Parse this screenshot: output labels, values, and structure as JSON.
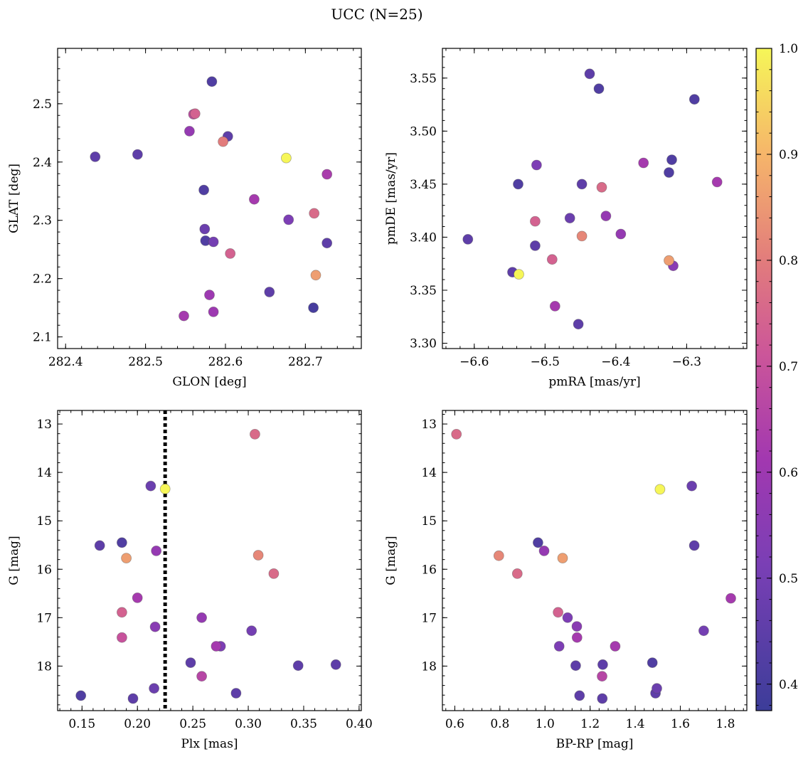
{
  "figure": {
    "title": "UCC (N=25)"
  },
  "colorbar": {
    "min": 0.375,
    "max": 1.0,
    "ticks": [
      0.4,
      0.5,
      0.6,
      0.7,
      0.8,
      0.9,
      1.0
    ],
    "tick_labels": [
      "0.4",
      "0.5",
      "0.6",
      "0.7",
      "0.8",
      "0.9",
      "1.0"
    ],
    "colormap": "plasma"
  },
  "chart_data": [
    {
      "type": "scatter",
      "xlabel": "GLON [deg]",
      "ylabel": "GLAT [deg]",
      "xlim": [
        282.39,
        282.77
      ],
      "ylim": [
        2.08,
        2.595
      ],
      "xticks": [
        282.4,
        282.5,
        282.6,
        282.7
      ],
      "xtick_labels": [
        "282.4",
        "282.5",
        "282.6",
        "282.7"
      ],
      "yticks": [
        2.1,
        2.2,
        2.3,
        2.4,
        2.5
      ],
      "ytick_labels": [
        "2.1",
        "2.2",
        "2.3",
        "2.4",
        "2.5"
      ],
      "invert_y": false,
      "points": [
        {
          "x": 282.583,
          "y": 2.538,
          "c": 0.42
        },
        {
          "x": 282.56,
          "y": 2.482,
          "c": 0.68
        },
        {
          "x": 282.562,
          "y": 2.483,
          "c": 0.74
        },
        {
          "x": 282.555,
          "y": 2.453,
          "c": 0.58
        },
        {
          "x": 282.603,
          "y": 2.444,
          "c": 0.45
        },
        {
          "x": 282.597,
          "y": 2.435,
          "c": 0.8
        },
        {
          "x": 282.437,
          "y": 2.409,
          "c": 0.45
        },
        {
          "x": 282.49,
          "y": 2.413,
          "c": 0.45
        },
        {
          "x": 282.676,
          "y": 2.407,
          "c": 1.0
        },
        {
          "x": 282.727,
          "y": 2.379,
          "c": 0.63
        },
        {
          "x": 282.573,
          "y": 2.352,
          "c": 0.42
        },
        {
          "x": 282.636,
          "y": 2.336,
          "c": 0.62
        },
        {
          "x": 282.711,
          "y": 2.312,
          "c": 0.76
        },
        {
          "x": 282.679,
          "y": 2.301,
          "c": 0.52
        },
        {
          "x": 282.574,
          "y": 2.285,
          "c": 0.48
        },
        {
          "x": 282.575,
          "y": 2.265,
          "c": 0.42
        },
        {
          "x": 282.585,
          "y": 2.263,
          "c": 0.5
        },
        {
          "x": 282.727,
          "y": 2.261,
          "c": 0.45
        },
        {
          "x": 282.606,
          "y": 2.243,
          "c": 0.74
        },
        {
          "x": 282.713,
          "y": 2.206,
          "c": 0.86
        },
        {
          "x": 282.655,
          "y": 2.177,
          "c": 0.45
        },
        {
          "x": 282.58,
          "y": 2.172,
          "c": 0.6
        },
        {
          "x": 282.548,
          "y": 2.136,
          "c": 0.62
        },
        {
          "x": 282.585,
          "y": 2.143,
          "c": 0.6
        },
        {
          "x": 282.71,
          "y": 2.15,
          "c": 0.4
        }
      ]
    },
    {
      "type": "scatter",
      "xlabel": "pmRA [mas/yr]",
      "ylabel": "pmDE [mas/yr]",
      "xlim": [
        -6.645,
        -6.215
      ],
      "ylim": [
        3.295,
        3.578
      ],
      "xticks": [
        -6.6,
        -6.5,
        -6.4,
        -6.3
      ],
      "xtick_labels": [
        "−6.6",
        "−6.5",
        "−6.4",
        "−6.3"
      ],
      "yticks": [
        3.3,
        3.35,
        3.4,
        3.45,
        3.5,
        3.55
      ],
      "ytick_labels": [
        "3.30",
        "3.35",
        "3.40",
        "3.45",
        "3.50",
        "3.55"
      ],
      "invert_y": false,
      "points": [
        {
          "x": -6.437,
          "y": 3.554,
          "c": 0.45
        },
        {
          "x": -6.424,
          "y": 3.54,
          "c": 0.42
        },
        {
          "x": -6.289,
          "y": 3.53,
          "c": 0.42
        },
        {
          "x": -6.321,
          "y": 3.473,
          "c": 0.42
        },
        {
          "x": -6.512,
          "y": 3.468,
          "c": 0.52
        },
        {
          "x": -6.361,
          "y": 3.47,
          "c": 0.62
        },
        {
          "x": -6.325,
          "y": 3.461,
          "c": 0.42
        },
        {
          "x": -6.257,
          "y": 3.452,
          "c": 0.62
        },
        {
          "x": -6.538,
          "y": 3.45,
          "c": 0.42
        },
        {
          "x": -6.448,
          "y": 3.45,
          "c": 0.45
        },
        {
          "x": -6.42,
          "y": 3.447,
          "c": 0.76
        },
        {
          "x": -6.465,
          "y": 3.418,
          "c": 0.48
        },
        {
          "x": -6.414,
          "y": 3.42,
          "c": 0.58
        },
        {
          "x": -6.514,
          "y": 3.415,
          "c": 0.74
        },
        {
          "x": -6.393,
          "y": 3.403,
          "c": 0.58
        },
        {
          "x": -6.448,
          "y": 3.401,
          "c": 0.82
        },
        {
          "x": -6.609,
          "y": 3.398,
          "c": 0.45
        },
        {
          "x": -6.514,
          "y": 3.392,
          "c": 0.45
        },
        {
          "x": -6.49,
          "y": 3.379,
          "c": 0.74
        },
        {
          "x": -6.325,
          "y": 3.378,
          "c": 0.86
        },
        {
          "x": -6.319,
          "y": 3.373,
          "c": 0.55
        },
        {
          "x": -6.546,
          "y": 3.367,
          "c": 0.45
        },
        {
          "x": -6.537,
          "y": 3.365,
          "c": 1.0
        },
        {
          "x": -6.486,
          "y": 3.335,
          "c": 0.62
        },
        {
          "x": -6.453,
          "y": 3.318,
          "c": 0.45
        }
      ]
    },
    {
      "type": "scatter",
      "xlabel": "Plx [mas]",
      "ylabel": "G [mag]",
      "xlim": [
        0.128,
        0.402
      ],
      "ylim": [
        18.92,
        12.72
      ],
      "xticks": [
        0.15,
        0.2,
        0.25,
        0.3,
        0.35,
        0.4
      ],
      "xtick_labels": [
        "0.15",
        "0.20",
        "0.25",
        "0.30",
        "0.35",
        "0.40"
      ],
      "yticks": [
        13,
        14,
        15,
        16,
        17,
        18
      ],
      "ytick_labels": [
        "13",
        "14",
        "15",
        "16",
        "17",
        "18"
      ],
      "invert_y": true,
      "vline": 0.225,
      "points": [
        {
          "x": 0.306,
          "y": 13.21,
          "c": 0.76
        },
        {
          "x": 0.212,
          "y": 14.28,
          "c": 0.48
        },
        {
          "x": 0.225,
          "y": 14.34,
          "c": 1.0
        },
        {
          "x": 0.186,
          "y": 15.45,
          "c": 0.42
        },
        {
          "x": 0.166,
          "y": 15.51,
          "c": 0.45
        },
        {
          "x": 0.217,
          "y": 15.62,
          "c": 0.58
        },
        {
          "x": 0.309,
          "y": 15.71,
          "c": 0.82
        },
        {
          "x": 0.19,
          "y": 15.77,
          "c": 0.86
        },
        {
          "x": 0.323,
          "y": 16.09,
          "c": 0.76
        },
        {
          "x": 0.2,
          "y": 16.59,
          "c": 0.62
        },
        {
          "x": 0.186,
          "y": 16.89,
          "c": 0.74
        },
        {
          "x": 0.258,
          "y": 17.0,
          "c": 0.58
        },
        {
          "x": 0.216,
          "y": 17.19,
          "c": 0.55
        },
        {
          "x": 0.303,
          "y": 17.27,
          "c": 0.5
        },
        {
          "x": 0.186,
          "y": 17.41,
          "c": 0.7
        },
        {
          "x": 0.271,
          "y": 17.59,
          "c": 0.62
        },
        {
          "x": 0.275,
          "y": 17.59,
          "c": 0.52
        },
        {
          "x": 0.248,
          "y": 17.93,
          "c": 0.45
        },
        {
          "x": 0.379,
          "y": 17.97,
          "c": 0.45
        },
        {
          "x": 0.345,
          "y": 17.99,
          "c": 0.45
        },
        {
          "x": 0.258,
          "y": 18.21,
          "c": 0.66
        },
        {
          "x": 0.215,
          "y": 18.46,
          "c": 0.48
        },
        {
          "x": 0.289,
          "y": 18.56,
          "c": 0.45
        },
        {
          "x": 0.149,
          "y": 18.61,
          "c": 0.42
        },
        {
          "x": 0.196,
          "y": 18.67,
          "c": 0.45
        }
      ]
    },
    {
      "type": "scatter",
      "xlabel": "BP-RP [mag]",
      "ylabel": "G [mag]",
      "xlim": [
        0.545,
        1.895
      ],
      "ylim": [
        18.92,
        12.72
      ],
      "xticks": [
        0.6,
        0.8,
        1.0,
        1.2,
        1.4,
        1.6,
        1.8
      ],
      "xtick_labels": [
        "0.6",
        "0.8",
        "1.0",
        "1.2",
        "1.4",
        "1.6",
        "1.8"
      ],
      "yticks": [
        13,
        14,
        15,
        16,
        17,
        18
      ],
      "ytick_labels": [
        "13",
        "14",
        "15",
        "16",
        "17",
        "18"
      ],
      "invert_y": true,
      "points": [
        {
          "x": 0.607,
          "y": 13.21,
          "c": 0.76
        },
        {
          "x": 1.51,
          "y": 14.35,
          "c": 1.0
        },
        {
          "x": 1.651,
          "y": 14.28,
          "c": 0.48
        },
        {
          "x": 0.969,
          "y": 15.45,
          "c": 0.42
        },
        {
          "x": 1.662,
          "y": 15.51,
          "c": 0.45
        },
        {
          "x": 0.996,
          "y": 15.62,
          "c": 0.58
        },
        {
          "x": 0.795,
          "y": 15.72,
          "c": 0.82
        },
        {
          "x": 1.078,
          "y": 15.77,
          "c": 0.86
        },
        {
          "x": 0.877,
          "y": 16.09,
          "c": 0.76
        },
        {
          "x": 1.824,
          "y": 16.6,
          "c": 0.62
        },
        {
          "x": 1.058,
          "y": 16.89,
          "c": 0.74
        },
        {
          "x": 1.1,
          "y": 17.0,
          "c": 0.52
        },
        {
          "x": 1.141,
          "y": 17.18,
          "c": 0.55
        },
        {
          "x": 1.704,
          "y": 17.27,
          "c": 0.5
        },
        {
          "x": 1.142,
          "y": 17.41,
          "c": 0.62
        },
        {
          "x": 1.063,
          "y": 17.59,
          "c": 0.52
        },
        {
          "x": 1.311,
          "y": 17.59,
          "c": 0.62
        },
        {
          "x": 1.476,
          "y": 17.93,
          "c": 0.42
        },
        {
          "x": 1.256,
          "y": 17.97,
          "c": 0.45
        },
        {
          "x": 1.136,
          "y": 17.99,
          "c": 0.45
        },
        {
          "x": 1.253,
          "y": 18.21,
          "c": 0.66
        },
        {
          "x": 1.496,
          "y": 18.46,
          "c": 0.48
        },
        {
          "x": 1.49,
          "y": 18.56,
          "c": 0.45
        },
        {
          "x": 1.153,
          "y": 18.61,
          "c": 0.45
        },
        {
          "x": 1.254,
          "y": 18.67,
          "c": 0.45
        }
      ]
    }
  ]
}
